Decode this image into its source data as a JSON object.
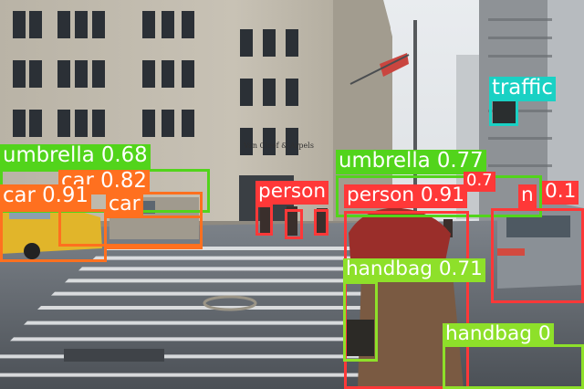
{
  "scene": {
    "storefront_sign": "Van Cleef & Arpels"
  },
  "palette": {
    "person": "#ff3838",
    "umbrella": "#52d41b",
    "car": "#ff701f",
    "handbag": "#8ee02a",
    "traffic_light": "#1ad1c4",
    "label_text": "#ffffff"
  },
  "detections": [
    {
      "label": "umbrella 0.68",
      "cls": "umbrella"
    },
    {
      "label": "car 0.82",
      "cls": "car"
    },
    {
      "label": "car 0.91",
      "cls": "car"
    },
    {
      "label": "car",
      "cls": "car"
    },
    {
      "label": "umbrella 0.77",
      "cls": "umbrella"
    },
    {
      "label": "person",
      "cls": "person"
    },
    {
      "label": "person 0.91",
      "cls": "person"
    },
    {
      "label": "handbag 0.71",
      "cls": "handbag"
    },
    {
      "label": "handbag 0",
      "cls": "handbag"
    },
    {
      "label": "traffic",
      "cls": "traffic_light"
    },
    {
      "label": "0.7",
      "cls": "person"
    },
    {
      "label": "n",
      "cls": "person"
    },
    {
      "label": "0.1",
      "cls": "person"
    }
  ]
}
